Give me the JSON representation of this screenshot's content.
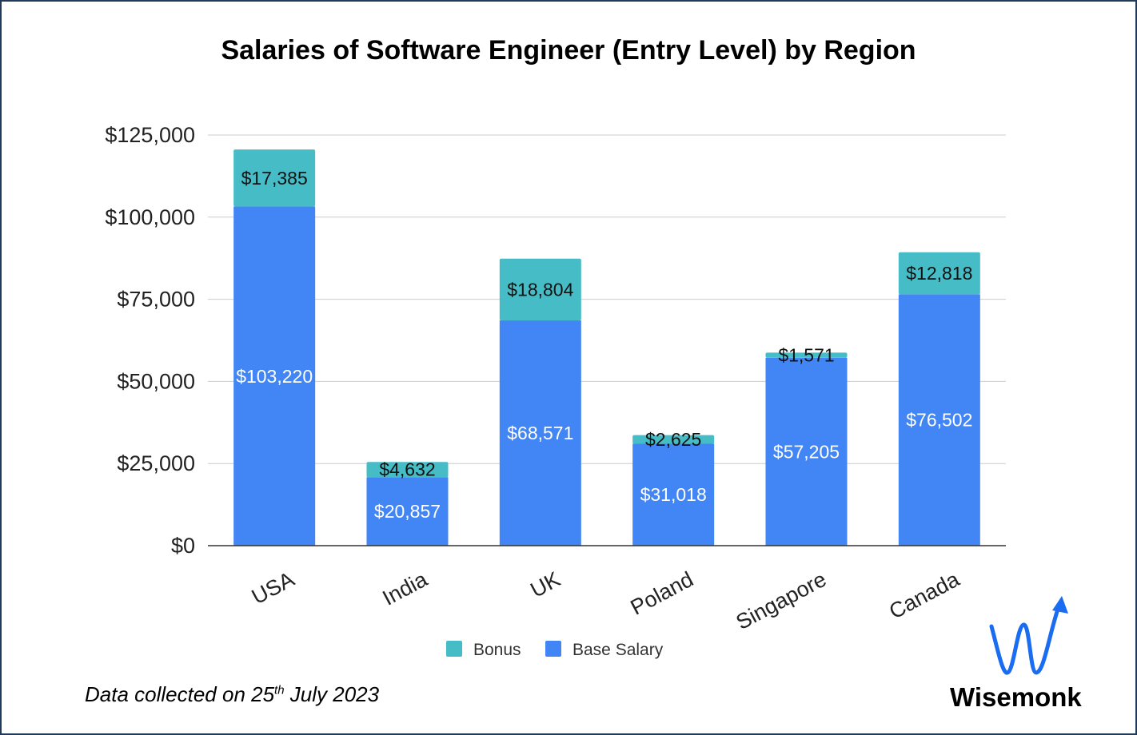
{
  "chart_data": {
    "type": "bar",
    "stacked": true,
    "title": "Salaries of Software Engineer (Entry Level) by Region",
    "categories": [
      "USA",
      "India",
      "UK",
      "Poland",
      "Singapore",
      "Canada"
    ],
    "series": [
      {
        "name": "Base Salary",
        "values": [
          103220,
          20857,
          68571,
          31018,
          57205,
          76502
        ],
        "labels": [
          "$103,220",
          "$20,857",
          "$68,571",
          "$31,018",
          "$57,205",
          "$76,502"
        ],
        "color": "#4285f4"
      },
      {
        "name": "Bonus",
        "values": [
          17385,
          4632,
          18804,
          2625,
          1571,
          12818
        ],
        "labels": [
          "$17,385",
          "$4,632",
          "$18,804",
          "$2,625",
          "$1,571",
          "$12,818"
        ],
        "color": "#46bdc6"
      }
    ],
    "ylim": [
      0,
      125000
    ],
    "yticks": [
      0,
      25000,
      50000,
      75000,
      100000,
      125000
    ],
    "ytick_labels": [
      "$0",
      "$25,000",
      "$50,000",
      "$75,000",
      "$100,000",
      "$125,000"
    ],
    "legend": [
      {
        "label": "Bonus",
        "color": "#46bdc6"
      },
      {
        "label": "Base Salary",
        "color": "#4285f4"
      }
    ],
    "legend_position": "bottom",
    "grid": true
  },
  "footnote": {
    "prefix": "Data collected on 25",
    "superscript": "th",
    "suffix": " July 2023"
  },
  "brand": {
    "name": "Wisemonk",
    "icon": "wisemonk-logo-icon",
    "color": "#1a6cf0"
  }
}
